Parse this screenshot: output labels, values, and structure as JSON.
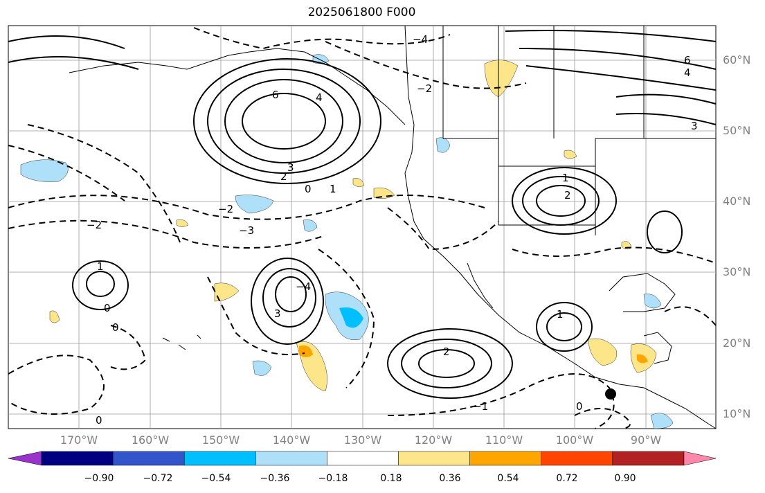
{
  "title": "2025061800 F000",
  "lat_labels": [
    "60°N",
    "50°N",
    "40°N",
    "30°N",
    "20°N",
    "10°N"
  ],
  "lon_labels": [
    "170°W",
    "160°W",
    "150°W",
    "140°W",
    "130°W",
    "120°W",
    "110°W",
    "100°W",
    "90°W"
  ],
  "colorbar": {
    "ticks": [
      "−0.90",
      "−0.72",
      "−0.54",
      "−0.36",
      "−0.18",
      "0.18",
      "0.36",
      "0.54",
      "0.72",
      "0.90"
    ],
    "colors": [
      "#9933cc",
      "#000080",
      "#3355cc",
      "#00bfff",
      "#aee0fa",
      "#ffffff",
      "#fde68a",
      "#ffa500",
      "#ff4500",
      "#b22222",
      "#ff88aa"
    ]
  },
  "contour_labels": [
    {
      "text": "6"
    },
    {
      "text": "4"
    },
    {
      "text": "3"
    },
    {
      "text": "2"
    },
    {
      "text": "0"
    },
    {
      "text": "1"
    },
    {
      "text": "−2"
    },
    {
      "text": "−3"
    },
    {
      "text": "−4"
    },
    {
      "text": "−1"
    }
  ],
  "colors": {
    "land_outline": "#000000",
    "grid": "#999999",
    "shade_pos": "#fde68a",
    "shade_neg": "#aee0fa"
  }
}
